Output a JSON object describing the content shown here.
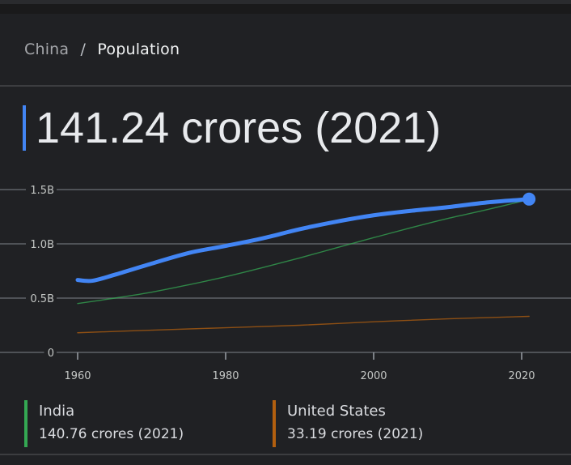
{
  "breadcrumb": {
    "parent": "China",
    "separator": "/",
    "current": "Population"
  },
  "headline": {
    "value": "141.24 crores (2021)",
    "accent_color": "#4285f4"
  },
  "legend": [
    {
      "name": "India",
      "value": "140.76 crores (2021)",
      "color": "#34a853"
    },
    {
      "name": "United States",
      "value": "33.19 crores (2021)",
      "color": "#b25f0f"
    }
  ],
  "chart_data": {
    "type": "line",
    "title": "China / Population",
    "xlabel": "",
    "ylabel": "",
    "xlim": [
      1960,
      2021
    ],
    "ylim": [
      0,
      1.5
    ],
    "x_ticks": [
      1960,
      1980,
      2000,
      2020
    ],
    "x_tick_labels": [
      "1960",
      "1980",
      "2000",
      "2020"
    ],
    "y_ticks": [
      0,
      0.5,
      1.0,
      1.5
    ],
    "y_tick_labels": [
      "0",
      "0.5B",
      "1.0B",
      "1.5B"
    ],
    "grid": true,
    "units": "billions",
    "series": [
      {
        "name": "China",
        "color": "#4285f4",
        "highlight_last_point": true,
        "x": [
          1960,
          1962,
          1965,
          1970,
          1975,
          1980,
          1985,
          1990,
          1995,
          2000,
          2005,
          2010,
          2015,
          2021
        ],
        "values": [
          0.667,
          0.66,
          0.715,
          0.818,
          0.916,
          0.981,
          1.051,
          1.135,
          1.205,
          1.263,
          1.304,
          1.338,
          1.379,
          1.412
        ]
      },
      {
        "name": "India",
        "color": "#34a853",
        "x": [
          1960,
          1965,
          1970,
          1975,
          1980,
          1985,
          1990,
          1995,
          2000,
          2005,
          2010,
          2015,
          2021
        ],
        "values": [
          0.45,
          0.5,
          0.555,
          0.623,
          0.697,
          0.781,
          0.87,
          0.964,
          1.057,
          1.148,
          1.234,
          1.31,
          1.408
        ]
      },
      {
        "name": "United States",
        "color": "#b25f0f",
        "x": [
          1960,
          1970,
          1980,
          1990,
          2000,
          2010,
          2021
        ],
        "values": [
          0.181,
          0.205,
          0.227,
          0.25,
          0.282,
          0.309,
          0.332
        ]
      }
    ]
  }
}
